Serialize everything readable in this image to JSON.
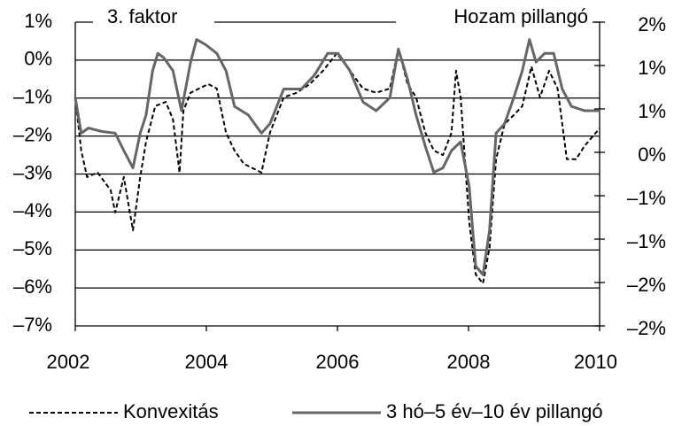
{
  "chart_data": {
    "type": "line",
    "annotations": [
      "3. faktor",
      "Hozam pillangó"
    ],
    "xlim": [
      2002,
      2010
    ],
    "xticks": [
      2002,
      2004,
      2006,
      2008,
      2010
    ],
    "ylim": [
      -7,
      1
    ],
    "yticks": [
      {
        "value": -7,
        "label": "–7%"
      },
      {
        "value": -6,
        "label": "–6%"
      },
      {
        "value": -5,
        "label": "–5%"
      },
      {
        "value": -4,
        "label": "–4%"
      },
      {
        "value": -3,
        "label": "–3%"
      },
      {
        "value": -2,
        "label": "–2%"
      },
      {
        "value": -1,
        "label": "–1%"
      },
      {
        "value": 0,
        "label": "0%"
      },
      {
        "value": 1,
        "label": "1%"
      }
    ],
    "y2lim": [
      -2,
      1.5
    ],
    "y2ticks": [
      {
        "value": -2,
        "label": "–2%"
      },
      {
        "value": -1.5,
        "label": "–2%"
      },
      {
        "value": -1,
        "label": "–1%"
      },
      {
        "value": -0.5,
        "label": "–1%"
      },
      {
        "value": 0,
        "label": "0%"
      },
      {
        "value": 0.5,
        "label": "1%"
      },
      {
        "value": 1,
        "label": "1%"
      },
      {
        "value": 1.5,
        "label": "2%"
      }
    ],
    "grid": true,
    "series": [
      {
        "name": "Konvexitás",
        "color": "#000000",
        "dash": true,
        "x": [
          2002.0,
          2002.09,
          2002.18,
          2002.34,
          2002.54,
          2002.61,
          2002.74,
          2002.88,
          2002.99,
          2003.08,
          2003.22,
          2003.38,
          2003.49,
          2003.59,
          2003.65,
          2003.76,
          2004.03,
          2004.16,
          2004.3,
          2004.43,
          2004.57,
          2004.84,
          2004.97,
          2005.18,
          2005.38,
          2005.58,
          2005.78,
          2005.99,
          2006.19,
          2006.39,
          2006.59,
          2006.8,
          2006.93,
          2007.07,
          2007.2,
          2007.34,
          2007.47,
          2007.61,
          2007.74,
          2007.81,
          2007.88,
          2008.01,
          2008.11,
          2008.22,
          2008.32,
          2008.42,
          2008.55,
          2008.69,
          2008.82,
          2008.96,
          2009.09,
          2009.23,
          2009.36,
          2009.5,
          2009.64,
          2009.77,
          2010.0
        ],
        "values": [
          -0.98,
          -2.38,
          -3.08,
          -2.96,
          -3.43,
          -4.01,
          -3.08,
          -4.48,
          -3.08,
          -2.15,
          -1.21,
          -1.1,
          -1.56,
          -2.96,
          -1.33,
          -0.86,
          -0.63,
          -0.75,
          -1.91,
          -2.38,
          -2.73,
          -2.96,
          -1.91,
          -0.98,
          -0.86,
          -0.63,
          -0.28,
          0.18,
          -0.28,
          -0.75,
          -0.86,
          -0.75,
          0.3,
          -0.63,
          -0.98,
          -1.91,
          -2.38,
          -2.5,
          -1.91,
          -0.28,
          -0.98,
          -4.24,
          -5.64,
          -5.88,
          -4.94,
          -2.61,
          -1.68,
          -1.45,
          -1.21,
          -0.17,
          -0.98,
          -0.28,
          -0.75,
          -2.61,
          -2.61,
          -2.26,
          -1.8
        ]
      },
      {
        "name": "3 hó–5 év–10 év pillangó",
        "color": "#666666",
        "dash": false,
        "axis": "y2",
        "x": [
          2002.0,
          2002.09,
          2002.2,
          2002.41,
          2002.61,
          2002.74,
          2002.88,
          2002.99,
          2003.08,
          2003.18,
          2003.26,
          2003.35,
          2003.49,
          2003.62,
          2003.76,
          2003.85,
          2003.99,
          2004.16,
          2004.3,
          2004.43,
          2004.64,
          2004.84,
          2004.97,
          2005.18,
          2005.45,
          2005.65,
          2005.85,
          2006.01,
          2006.19,
          2006.39,
          2006.59,
          2006.8,
          2006.93,
          2007.07,
          2007.2,
          2007.34,
          2007.47,
          2007.61,
          2007.74,
          2007.88,
          2008.01,
          2008.11,
          2008.22,
          2008.32,
          2008.42,
          2008.55,
          2008.69,
          2008.82,
          2008.93,
          2009.03,
          2009.16,
          2009.3,
          2009.43,
          2009.57,
          2009.77,
          2010.0
        ],
        "values": [
          0.63,
          0.22,
          0.28,
          0.24,
          0.22,
          0.02,
          -0.18,
          0.22,
          0.43,
          0.94,
          1.14,
          1.09,
          0.94,
          0.48,
          1.04,
          1.3,
          1.24,
          1.14,
          0.94,
          0.53,
          0.43,
          0.22,
          0.33,
          0.73,
          0.73,
          0.89,
          1.14,
          1.14,
          0.94,
          0.58,
          0.48,
          0.63,
          1.19,
          0.84,
          0.43,
          0.07,
          -0.23,
          -0.18,
          0.02,
          0.12,
          -0.39,
          -1.31,
          -1.41,
          -0.9,
          0.22,
          0.33,
          0.63,
          0.94,
          1.3,
          1.04,
          1.14,
          1.14,
          0.73,
          0.53,
          0.48,
          0.48
        ]
      }
    ]
  }
}
